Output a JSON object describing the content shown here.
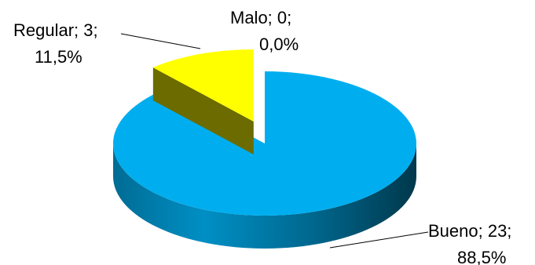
{
  "chart_data": {
    "type": "pie",
    "categories": [
      "Bueno",
      "Regular",
      "Malo"
    ],
    "values": [
      23,
      3,
      0
    ],
    "percentages": [
      "88,5%",
      "11,5%",
      "0,0%"
    ],
    "colors": {
      "Bueno": "#00aeef",
      "Regular": "#ffff00",
      "Malo": "#ff0000"
    },
    "exploded_slice": "Regular",
    "data_labels": [
      {
        "category": "Bueno",
        "line1": "Bueno; 23;",
        "line2": "88,5%"
      },
      {
        "category": "Regular",
        "line1": "Regular; 3;",
        "line2": "11,5%"
      },
      {
        "category": "Malo",
        "line1": "Malo; 0;",
        "line2": "0,0%"
      }
    ],
    "legend": "none",
    "style": "3d"
  }
}
